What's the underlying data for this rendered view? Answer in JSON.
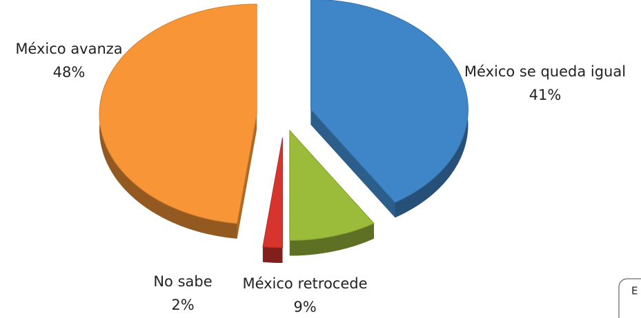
{
  "chart_data": {
    "type": "pie",
    "categories": [
      "México se queda igual",
      "México retrocede",
      "No sabe",
      "México avanza"
    ],
    "values": [
      41,
      9,
      2,
      48
    ],
    "value_labels": [
      "41%",
      "9%",
      "2%",
      "48%"
    ],
    "colors": [
      "#3f86c8",
      "#9bbb3b",
      "#d7342e",
      "#f79537"
    ],
    "annotation": "E"
  }
}
